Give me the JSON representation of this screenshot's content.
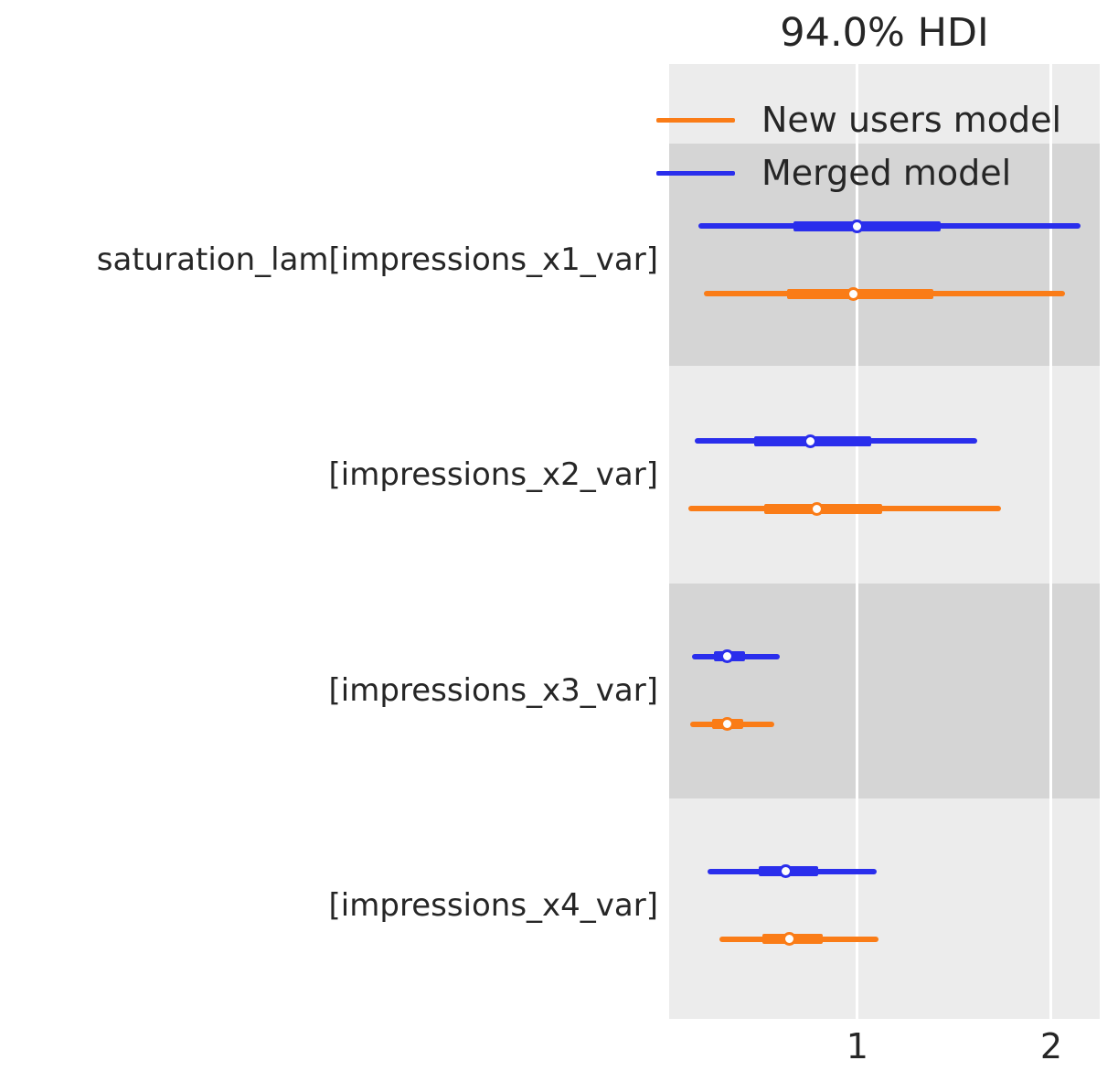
{
  "title": "94.0% HDI",
  "legend": {
    "items": [
      {
        "name": "New users model",
        "color": "#fa7c17"
      },
      {
        "name": "Merged model",
        "color": "#2a2eec"
      }
    ]
  },
  "colors": {
    "band_light": "#ececec",
    "band_dark": "#d5d5d5",
    "gridline": "#ffffff",
    "text": "#262626",
    "orange": "#fa7c17",
    "blue": "#2a2eec"
  },
  "chart_data": {
    "type": "forest",
    "title": "94.0% HDI",
    "hdi_prob": 0.94,
    "xlabel": "",
    "ylabel": "",
    "xlim": [
      0.03,
      2.25
    ],
    "x_ticks": [
      1,
      2
    ],
    "grid": "vertical-white-on-gray-bands",
    "legend_position": "upper right inside",
    "rows": [
      {
        "label": "saturation_lam[impressions_x1_var]",
        "series": [
          {
            "model": "Merged model",
            "color": "#2a2eec",
            "hdi_94": [
              0.18,
              2.15
            ],
            "iqr": [
              0.67,
              1.43
            ],
            "median": 1.0
          },
          {
            "model": "New users model",
            "color": "#fa7c17",
            "hdi_94": [
              0.21,
              2.07
            ],
            "iqr": [
              0.64,
              1.39
            ],
            "median": 0.98
          }
        ]
      },
      {
        "label": "[impressions_x2_var]",
        "series": [
          {
            "model": "Merged model",
            "color": "#2a2eec",
            "hdi_94": [
              0.16,
              1.62
            ],
            "iqr": [
              0.47,
              1.07
            ],
            "median": 0.76
          },
          {
            "model": "New users model",
            "color": "#fa7c17",
            "hdi_94": [
              0.13,
              1.74
            ],
            "iqr": [
              0.52,
              1.13
            ],
            "median": 0.79
          }
        ]
      },
      {
        "label": "[impressions_x3_var]",
        "series": [
          {
            "model": "Merged model",
            "color": "#2a2eec",
            "hdi_94": [
              0.15,
              0.6
            ],
            "iqr": [
              0.26,
              0.42
            ],
            "median": 0.33
          },
          {
            "model": "New users model",
            "color": "#fa7c17",
            "hdi_94": [
              0.14,
              0.57
            ],
            "iqr": [
              0.25,
              0.41
            ],
            "median": 0.33
          }
        ]
      },
      {
        "label": "[impressions_x4_var]",
        "series": [
          {
            "model": "Merged model",
            "color": "#2a2eec",
            "hdi_94": [
              0.23,
              1.1
            ],
            "iqr": [
              0.49,
              0.8
            ],
            "median": 0.63
          },
          {
            "model": "New users model",
            "color": "#fa7c17",
            "hdi_94": [
              0.29,
              1.11
            ],
            "iqr": [
              0.51,
              0.82
            ],
            "median": 0.65
          }
        ]
      }
    ]
  }
}
